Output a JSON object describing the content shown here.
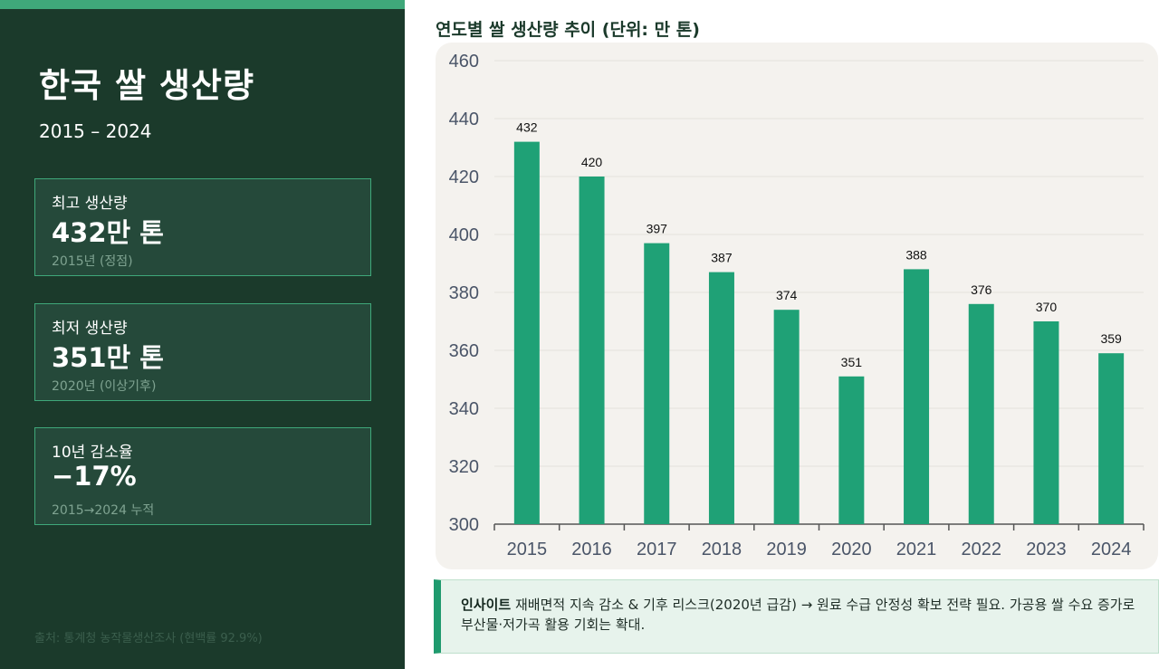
{
  "summary": {
    "title": "한국 쌀 생산량",
    "period": "2015 – 2024",
    "cards": [
      {
        "label": "최고 생산량",
        "value": "432만 톤",
        "note": "2015년 (정점)"
      },
      {
        "label": "최저 생산량",
        "value": "351만 톤",
        "note": "2020년 (이상기후)"
      },
      {
        "label": "10년 감소율",
        "value": "−17%",
        "note": "2015→2024 누적"
      }
    ],
    "source": "출처: 통계청 농작물생산조사 (현백률 92.9%)"
  },
  "insight": {
    "label": "인사이트",
    "text": " 재배면적 지속 감소 & 기후 리스크(2020년 급감) → 원료 수급 안정성 확보 전략 필요. 가공용 쌀 수요 증가로 부산물·저가곡 활용 기회는 확대."
  },
  "colors": {
    "panel_bg": "#1b3a2b",
    "accent": "#3fa87a",
    "bar": "#1fa176",
    "chart_bg": "#f4f2ee",
    "axis_text": "#4a5568"
  },
  "chart_data": {
    "type": "bar",
    "title": "연도별 쌀 생산량 추이 (단위: 만 톤)",
    "categories": [
      "2015",
      "2016",
      "2017",
      "2018",
      "2019",
      "2020",
      "2021",
      "2022",
      "2023",
      "2024"
    ],
    "values": [
      432,
      420,
      397,
      387,
      374,
      351,
      388,
      376,
      370,
      359
    ],
    "ylim": [
      300,
      460
    ],
    "yticks": [
      300,
      320,
      340,
      360,
      380,
      400,
      420,
      440,
      460
    ],
    "xlabel": "",
    "ylabel": "",
    "grid": true,
    "data_labels": true,
    "legend": "none"
  }
}
